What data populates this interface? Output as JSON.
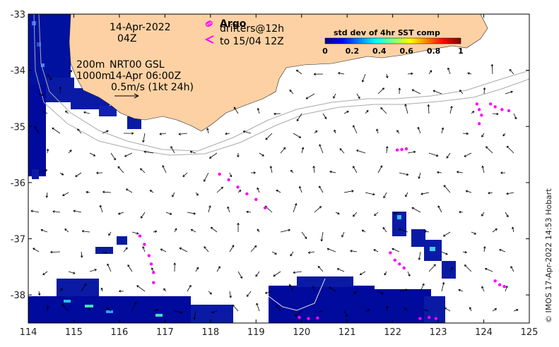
{
  "map": {
    "lon_range": [
      114,
      125
    ],
    "lat_range": [
      -38.5,
      -33
    ],
    "x_ticks": [
      114,
      115,
      116,
      117,
      118,
      119,
      120,
      121,
      122,
      123,
      124,
      125
    ],
    "y_ticks": [
      -33,
      -34,
      -35,
      -36,
      -37,
      -38
    ],
    "land_color": "#fdd1a3",
    "ocean_color": "#ffffff"
  },
  "annotations": {
    "date": "14-Apr-2022",
    "time": "04Z",
    "contour_200": "200m",
    "contour_1000": "1000m",
    "current_source": "NRT00 GSL",
    "current_time": "14-Apr 06:00Z",
    "scale_label": "0.5m/s (1kt 24h)",
    "argo_label": "Argo",
    "drifters_label": "drifters@12h",
    "drifters_to": "to 15/04 12Z"
  },
  "colorbar": {
    "title": "std dev of 4hr SST comp",
    "ticks": [
      "0",
      "0.2",
      "0.4",
      "0.6",
      "0.8",
      "1"
    ],
    "stops": [
      "#00008f",
      "#0000ff",
      "#0080ff",
      "#00ffff",
      "#80ff80",
      "#ffff00",
      "#ff8000",
      "#ff0000",
      "#800000"
    ]
  },
  "credit": "© IMOS 17-Apr-2022 14:53 Hobart",
  "legend_colors": {
    "argo": "#ff00ff",
    "drifter": "#ff00ff"
  },
  "drifter_tracks": [
    {
      "lon": [
        118.2,
        118.4,
        118.6,
        118.8,
        119.0,
        119.2
      ],
      "lat": [
        -35.85,
        -35.95,
        -36.08,
        -36.2,
        -36.3,
        -36.45
      ]
    },
    {
      "lon": [
        116.45,
        116.55,
        116.65,
        116.7,
        116.75,
        116.75
      ],
      "lat": [
        -36.95,
        -37.1,
        -37.3,
        -37.45,
        -37.6,
        -37.78
      ]
    },
    {
      "lon": [
        121.95,
        122.05,
        122.15,
        122.25
      ],
      "lat": [
        -37.25,
        -37.38,
        -37.45,
        -37.52
      ]
    },
    {
      "lon": [
        123.85,
        123.9,
        123.95,
        123.9
      ],
      "lat": [
        -34.6,
        -34.7,
        -34.8,
        -34.95
      ]
    },
    {
      "lon": [
        124.15,
        124.25,
        124.4,
        124.55
      ],
      "lat": [
        -34.6,
        -34.65,
        -34.7,
        -34.72
      ]
    },
    {
      "lon": [
        122.1,
        122.2,
        122.3
      ],
      "lat": [
        -35.42,
        -35.41,
        -35.4
      ]
    },
    {
      "lon": [
        124.25,
        124.35,
        124.45
      ],
      "lat": [
        -37.75,
        -37.82,
        -37.85
      ]
    },
    {
      "lon": [
        119.95,
        120.15,
        120.35
      ],
      "lat": [
        -38.4,
        -38.42,
        -38.41
      ]
    },
    {
      "lon": [
        122.6,
        122.8,
        122.95
      ],
      "lat": [
        -38.42,
        -38.4,
        -38.42
      ]
    }
  ],
  "argo_floats": [
    {
      "lon": 117.95,
      "lat": -33.18
    }
  ]
}
